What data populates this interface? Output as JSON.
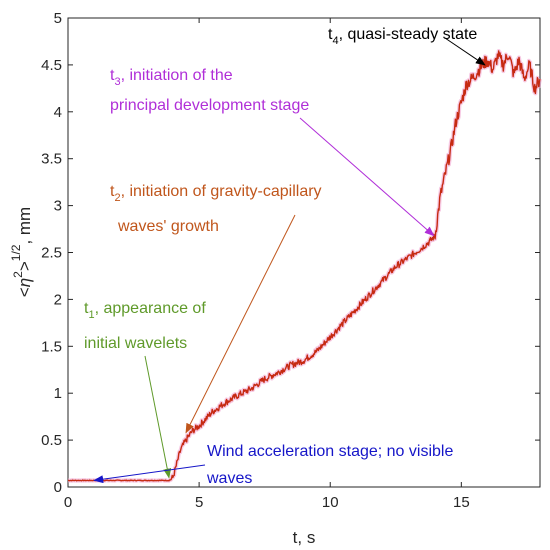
{
  "chart_data": {
    "type": "line",
    "xlabel": "t, s",
    "ylabel": "<η²>^1/2, mm",
    "ylabel_parts": {
      "open": "<",
      "eta": "η",
      "sq": "2",
      "close": ">",
      "power": "1/2",
      "unit": ", mm"
    },
    "xlim": [
      0,
      18
    ],
    "ylim": [
      0,
      5
    ],
    "xticks": [
      0,
      5,
      10,
      15
    ],
    "yticks": [
      0,
      0.5,
      1,
      1.5,
      2,
      2.5,
      3,
      3.5,
      4,
      4.5,
      5
    ],
    "grid": false,
    "series": [
      {
        "color": "#c62a12",
        "x": [
          0,
          1,
          2,
          3,
          3.6,
          3.85,
          4.0,
          4.15,
          4.3,
          4.5,
          4.75,
          5.0,
          5.5,
          6.0,
          6.5,
          7.0,
          7.5,
          8.0,
          8.5,
          9.0,
          9.5,
          10.0,
          10.5,
          11.0,
          11.5,
          12.0,
          12.5,
          13.0,
          13.5,
          13.8,
          14.0,
          14.2,
          14.4,
          14.6,
          14.8,
          15.0,
          15.2,
          15.4,
          15.6,
          15.8,
          16.0,
          16.2,
          16.4,
          16.6,
          16.8,
          17.0,
          17.2,
          17.4,
          17.6,
          17.8,
          18.0
        ],
        "y": [
          0.07,
          0.07,
          0.07,
          0.07,
          0.07,
          0.07,
          0.1,
          0.25,
          0.4,
          0.5,
          0.6,
          0.65,
          0.8,
          0.9,
          0.98,
          1.05,
          1.15,
          1.22,
          1.3,
          1.35,
          1.45,
          1.6,
          1.75,
          1.9,
          2.05,
          2.2,
          2.35,
          2.45,
          2.55,
          2.62,
          2.68,
          3.1,
          3.35,
          3.6,
          3.9,
          4.1,
          4.3,
          4.35,
          4.42,
          4.5,
          4.55,
          4.45,
          4.6,
          4.5,
          4.62,
          4.4,
          4.55,
          4.35,
          4.5,
          4.25,
          4.35
        ]
      }
    ],
    "annotations": [
      {
        "id": "t4",
        "sym": "t",
        "sub": "4",
        "lines": [
          ", quasi-steady state"
        ],
        "color": "#000000",
        "arrow_to": [
          15.9,
          4.5
        ]
      },
      {
        "id": "t3",
        "sym": "t",
        "sub": "3",
        "lines": [
          ", initiation of the",
          "principal development stage"
        ],
        "color": "#b02fd8",
        "arrow_to": [
          13.95,
          2.68
        ]
      },
      {
        "id": "t2",
        "sym": "t",
        "sub": "2",
        "lines": [
          ", initiation of gravity-capillary",
          "waves' growth"
        ],
        "color": "#c0561c",
        "arrow_to": [
          4.5,
          0.58
        ]
      },
      {
        "id": "t1",
        "sym": "t",
        "sub": "1",
        "lines": [
          ", appearance of",
          "initial wavelets"
        ],
        "color": "#5f9a2a",
        "arrow_to": [
          3.85,
          0.1
        ]
      },
      {
        "id": "wind",
        "sym": "",
        "sub": "",
        "lines": [
          "Wind acceleration stage; no visible",
          "waves"
        ],
        "color": "#1616c8",
        "arrow_to": [
          1.0,
          0.07
        ]
      }
    ]
  }
}
